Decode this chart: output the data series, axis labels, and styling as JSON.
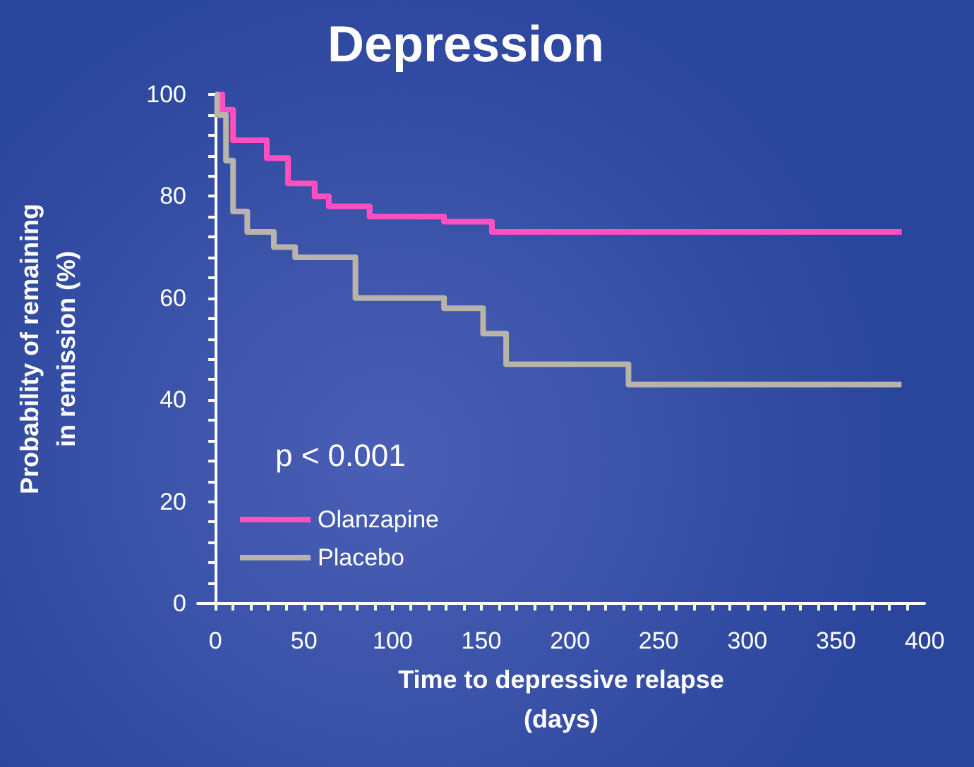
{
  "chart_data": {
    "type": "step",
    "title": "Depression",
    "xlabel": "Time to depressive relapse\n(days)",
    "ylabel": "Probability of remaining\nin remission (%)",
    "xlim": [
      -10,
      400
    ],
    "xticks": [
      0,
      50,
      100,
      150,
      200,
      250,
      300,
      350,
      400
    ],
    "ylim": [
      0,
      100
    ],
    "yticks": [
      0,
      20,
      40,
      60,
      80,
      100
    ],
    "series": [
      {
        "name": "Olanzapine",
        "color": "#ff4fc0",
        "x": [
          0,
          4,
          10,
          29,
          41,
          56,
          64,
          87,
          129,
          156,
          387
        ],
        "values": [
          100,
          97,
          91,
          87.5,
          82.5,
          80,
          78,
          76,
          75,
          73,
          73
        ]
      },
      {
        "name": "Placebo",
        "color": "#b8b4a8",
        "x": [
          0,
          1,
          6,
          10,
          18,
          33,
          45,
          79,
          129,
          151,
          164,
          233,
          387
        ],
        "values": [
          100,
          96,
          87,
          77,
          73,
          70,
          68,
          60,
          58,
          53,
          47,
          43,
          43
        ]
      }
    ],
    "annotations": [
      "p < 0.001"
    ],
    "legend": "bottom left",
    "grid": false,
    "marker": "none",
    "line_style": "solid"
  }
}
